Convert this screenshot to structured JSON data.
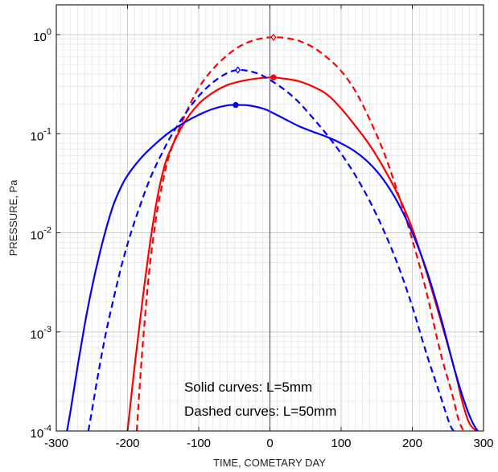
{
  "chart_data": {
    "type": "line",
    "xlabel": "TIME, COMETARY DAY",
    "ylabel": "PRESSURE, Pa",
    "xlim": [
      -300,
      300
    ],
    "ylim": [
      0.0001,
      2
    ],
    "yscale": "log",
    "grid": true,
    "x_ticks": [
      "-300",
      "-200",
      "-100",
      "0",
      "100",
      "200",
      "300"
    ],
    "y_ticks": [
      {
        "base": "10",
        "exp": "-4"
      },
      {
        "base": "10",
        "exp": "-3"
      },
      {
        "base": "10",
        "exp": "-2"
      },
      {
        "base": "10",
        "exp": "-1"
      },
      {
        "base": "10",
        "exp": "0"
      }
    ],
    "annotations": [
      "Solid curves: L=5mm",
      "Dashed curves: L=50mm"
    ],
    "vertical_line_x": 0,
    "series": [
      {
        "color": "#ff0000",
        "dash": false,
        "x": [
          -200,
          -190,
          -180,
          -170,
          -160,
          -150,
          -140,
          -120,
          -100,
          -80,
          -60,
          -40,
          -20,
          0,
          5,
          20,
          40,
          60,
          80,
          100,
          120,
          140,
          160,
          180,
          200,
          220,
          240,
          260,
          270,
          280,
          290
        ],
        "y": [
          0.0001,
          0.00045,
          0.0018,
          0.0065,
          0.019,
          0.042,
          0.068,
          0.13,
          0.2,
          0.26,
          0.31,
          0.34,
          0.36,
          0.37,
          0.37,
          0.36,
          0.34,
          0.3,
          0.25,
          0.18,
          0.12,
          0.077,
          0.045,
          0.024,
          0.011,
          0.004,
          0.0013,
          0.0004,
          0.0002,
          0.00012,
          0.0001
        ],
        "marker": {
          "x": 5,
          "y": 0.37,
          "shape": "circle"
        }
      },
      {
        "color": "#ff0000",
        "dash": true,
        "x": [
          -187,
          -180,
          -170,
          -160,
          -150,
          -140,
          -120,
          -100,
          -80,
          -60,
          -40,
          -20,
          0,
          10,
          20,
          40,
          60,
          80,
          100,
          120,
          140,
          160,
          180,
          200,
          220,
          240,
          255,
          265,
          272
        ],
        "y": [
          0.0001,
          0.00055,
          0.0038,
          0.014,
          0.034,
          0.065,
          0.15,
          0.29,
          0.45,
          0.62,
          0.78,
          0.89,
          0.94,
          0.94,
          0.93,
          0.87,
          0.75,
          0.59,
          0.43,
          0.27,
          0.14,
          0.065,
          0.025,
          0.0085,
          0.0025,
          0.0006,
          0.00025,
          0.00013,
          0.0001
        ],
        "marker": {
          "x": 5,
          "y": 0.94,
          "shape": "diamond"
        }
      },
      {
        "color": "#0000ff",
        "dash": false,
        "x": [
          -285,
          -280,
          -270,
          -260,
          -250,
          -240,
          -230,
          -220,
          -210,
          -200,
          -180,
          -160,
          -140,
          -120,
          -100,
          -80,
          -60,
          -48,
          -30,
          -10,
          0,
          20,
          40,
          60,
          80,
          100,
          120,
          140,
          160,
          180,
          200,
          220,
          240,
          260,
          275,
          285,
          292
        ],
        "y": [
          0.0001,
          0.00016,
          0.00045,
          0.0012,
          0.0028,
          0.0058,
          0.011,
          0.019,
          0.028,
          0.038,
          0.058,
          0.08,
          0.105,
          0.13,
          0.155,
          0.178,
          0.193,
          0.195,
          0.193,
          0.18,
          0.168,
          0.142,
          0.12,
          0.105,
          0.093,
          0.08,
          0.066,
          0.05,
          0.034,
          0.02,
          0.01,
          0.0042,
          0.0014,
          0.0004,
          0.00018,
          0.00012,
          0.0001
        ],
        "marker": {
          "x": -48,
          "y": 0.195,
          "shape": "circle"
        }
      },
      {
        "color": "#0000ff",
        "dash": true,
        "x": [
          -255,
          -250,
          -240,
          -230,
          -220,
          -210,
          -200,
          -190,
          -180,
          -170,
          -160,
          -150,
          -140,
          -120,
          -100,
          -80,
          -60,
          -45,
          -30,
          -15,
          0,
          20,
          40,
          60,
          80,
          100,
          120,
          140,
          160,
          180,
          200,
          220,
          240,
          252,
          258
        ],
        "y": [
          0.0001,
          0.00016,
          0.00042,
          0.001,
          0.0021,
          0.0042,
          0.0077,
          0.013,
          0.021,
          0.033,
          0.048,
          0.067,
          0.092,
          0.155,
          0.24,
          0.33,
          0.41,
          0.44,
          0.43,
          0.4,
          0.35,
          0.28,
          0.21,
          0.145,
          0.098,
          0.063,
          0.038,
          0.021,
          0.0105,
          0.0047,
          0.0018,
          0.0006,
          0.00022,
          0.00012,
          0.0001
        ],
        "marker": {
          "x": -45,
          "y": 0.44,
          "shape": "diamond"
        }
      }
    ]
  }
}
